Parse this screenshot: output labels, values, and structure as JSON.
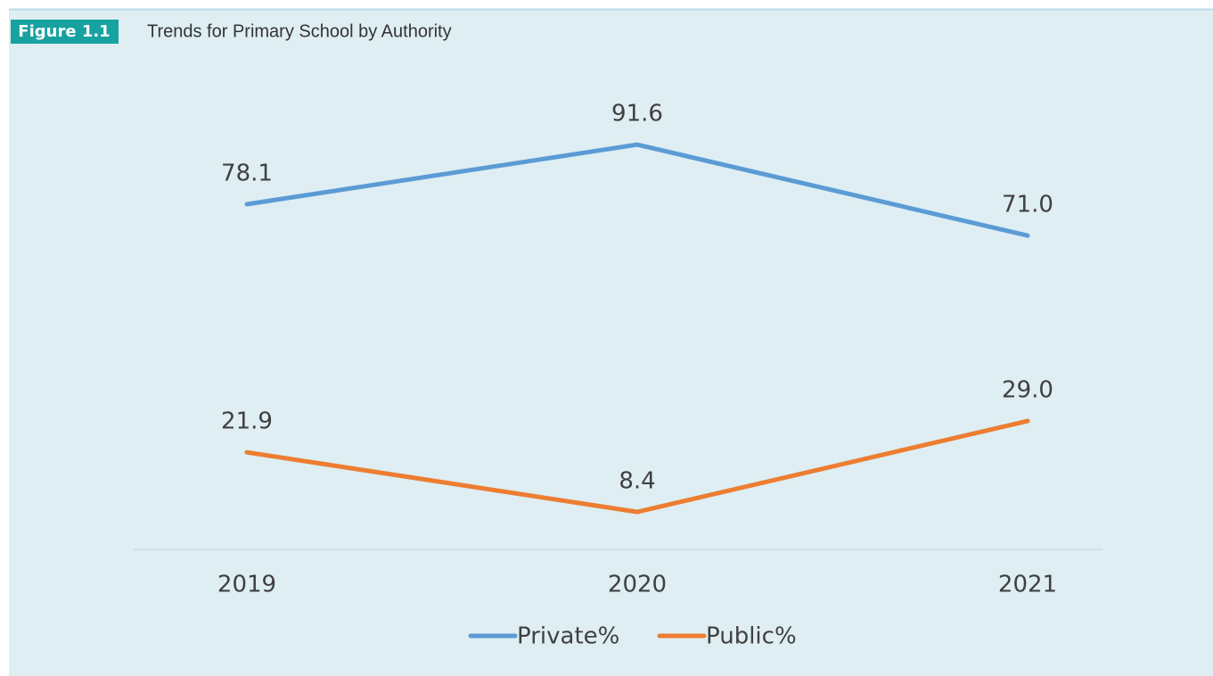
{
  "chart_data": {
    "type": "line",
    "figure_label": "Figure 1.1",
    "title": "Trends for Primary School by Authority",
    "categories": [
      "2019",
      "2020",
      "2021"
    ],
    "series": [
      {
        "name": "Private%",
        "color": "#5b9bd5",
        "values": [
          78.1,
          91.6,
          71.0
        ],
        "value_labels": [
          "78.1",
          "91.6",
          "71.0"
        ]
      },
      {
        "name": "Public%",
        "color": "#ed7d31",
        "values": [
          21.9,
          8.4,
          29.0
        ],
        "value_labels": [
          "21.9",
          "8.4",
          "29.0"
        ]
      }
    ],
    "ylim": [
      0,
      100
    ],
    "legend": "bottom"
  }
}
